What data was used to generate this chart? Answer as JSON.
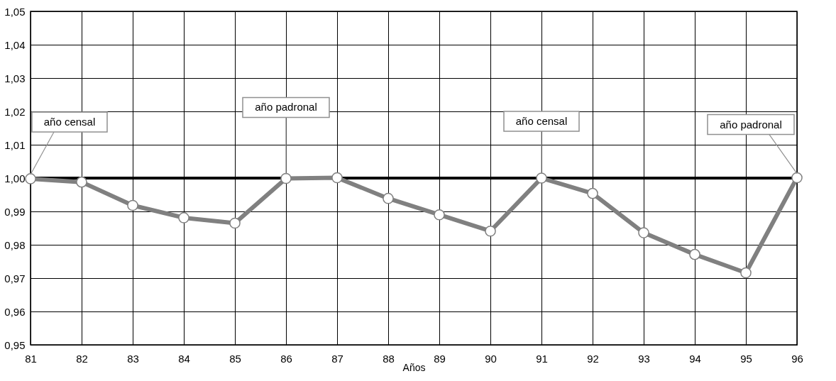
{
  "chart_data": {
    "type": "line",
    "xlabel": "Años",
    "x": [
      81,
      82,
      83,
      84,
      85,
      86,
      87,
      88,
      89,
      90,
      91,
      92,
      93,
      94,
      95,
      96
    ],
    "series": [
      {
        "color": "#808080",
        "values": [
          0.9998,
          0.9988,
          0.9918,
          0.9881,
          0.9865,
          0.9999,
          1.0001,
          0.9939,
          0.989,
          0.9841,
          1.0,
          0.9954,
          0.9836,
          0.9771,
          0.9716,
          1.0001
        ]
      }
    ],
    "xlim": [
      81,
      96
    ],
    "xticks": [
      81,
      82,
      83,
      84,
      85,
      86,
      87,
      88,
      89,
      90,
      91,
      92,
      93,
      94,
      95,
      96
    ],
    "ylim": [
      0.95,
      1.05
    ],
    "yticks": [
      {
        "value": 0.95,
        "label": "0,95"
      },
      {
        "value": 0.96,
        "label": "0,96"
      },
      {
        "value": 0.97,
        "label": "0,97"
      },
      {
        "value": 0.98,
        "label": "0,98"
      },
      {
        "value": 0.99,
        "label": "0,99"
      },
      {
        "value": 1.0,
        "label": "1,00"
      },
      {
        "value": 1.01,
        "label": "1,01"
      },
      {
        "value": 1.02,
        "label": "1,02"
      },
      {
        "value": 1.03,
        "label": "1,03"
      },
      {
        "value": 1.04,
        "label": "1,04"
      },
      {
        "value": 1.05,
        "label": "1,05"
      }
    ],
    "grid": true,
    "marker": "circle",
    "line_style": "solid",
    "ref_lines": [
      {
        "axis": "y",
        "value": 1.0,
        "color": "#000000"
      }
    ],
    "annotations": [
      {
        "text": "año censal",
        "x": 81,
        "y": 0.9998
      },
      {
        "text": "año padronal",
        "x": 86,
        "y": 0.9999
      },
      {
        "text": "año censal",
        "x": 91,
        "y": 1.0
      },
      {
        "text": "año padronal",
        "x": 96,
        "y": 1.0001
      }
    ]
  }
}
